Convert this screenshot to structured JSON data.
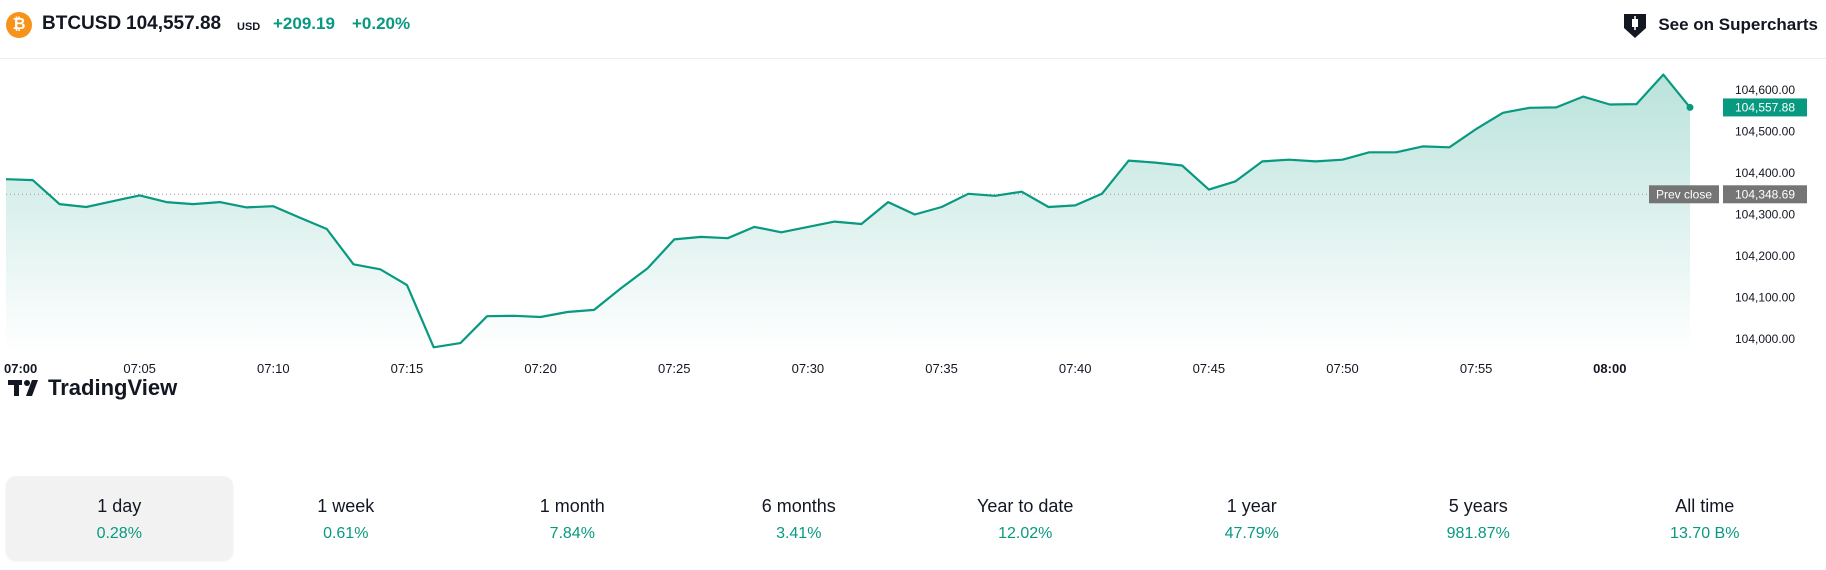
{
  "header": {
    "coin_icon": "bitcoin-icon",
    "coin_glyph": "₿",
    "symbol": "BTCUSD",
    "price": "104,557.88",
    "currency": "USD",
    "change": "+209.19",
    "change_pct": "+0.20%",
    "supercharts_label": "See on Supercharts",
    "supercharts_icon": "supercharts-icon"
  },
  "colors": {
    "line": "#089981",
    "positive": "#089981",
    "prev_close_bg": "#757575",
    "grid_text": "#131722"
  },
  "watermark": "TradingView",
  "chart_data": {
    "type": "area",
    "x": [
      "07:00",
      "07:01",
      "07:02",
      "07:03",
      "07:04",
      "07:05",
      "07:06",
      "07:07",
      "07:08",
      "07:09",
      "07:10",
      "07:11",
      "07:12",
      "07:13",
      "07:14",
      "07:15",
      "07:16",
      "07:17",
      "07:18",
      "07:19",
      "07:20",
      "07:21",
      "07:22",
      "07:23",
      "07:24",
      "07:25",
      "07:26",
      "07:27",
      "07:28",
      "07:29",
      "07:30",
      "07:31",
      "07:32",
      "07:33",
      "07:34",
      "07:35",
      "07:36",
      "07:37",
      "07:38",
      "07:39",
      "07:40",
      "07:41",
      "07:42",
      "07:43",
      "07:44",
      "07:45",
      "07:46",
      "07:47",
      "07:48",
      "07:49",
      "07:50",
      "07:51",
      "07:52",
      "07:53",
      "07:54",
      "07:55",
      "07:56",
      "07:57",
      "07:58",
      "07:59",
      "08:00",
      "08:01",
      "08:02",
      "08:03"
    ],
    "values": [
      104385,
      104383,
      104325,
      104318,
      104332,
      104346,
      104330,
      104325,
      104330,
      104317,
      104320,
      104292,
      104265,
      104180,
      104168,
      104130,
      103980,
      103990,
      104055,
      104056,
      104053,
      104065,
      104070,
      104122,
      104170,
      104240,
      104246,
      104243,
      104270,
      104257,
      104270,
      104283,
      104277,
      104330,
      104300,
      104318,
      104350,
      104345,
      104355,
      104318,
      104322,
      104350,
      104430,
      104425,
      104418,
      104360,
      104380,
      104428,
      104432,
      104428,
      104432,
      104450,
      104450,
      104464,
      104462,
      104506,
      104545,
      104557,
      104558,
      104584,
      104565,
      104566,
      104637,
      104558
    ],
    "prev_close": 104348.69,
    "last_price_label": "104,557.88",
    "prev_close_value_label": "104,348.69",
    "prev_close_label": "Prev close",
    "y_ticks": [
      "104,000.00",
      "104,100.00",
      "104,200.00",
      "104,300.00",
      "104,400.00",
      "104,500.00",
      "104,600.00"
    ],
    "x_ticks": [
      "07:00",
      "07:05",
      "07:10",
      "07:15",
      "07:20",
      "07:25",
      "07:30",
      "07:35",
      "07:40",
      "07:45",
      "07:50",
      "07:55",
      "08:00"
    ],
    "ylim": [
      103990,
      104660
    ],
    "grid": false
  },
  "periods": [
    {
      "label": "1 day",
      "value": "0.28%",
      "active": true
    },
    {
      "label": "1 week",
      "value": "0.61%",
      "active": false
    },
    {
      "label": "1 month",
      "value": "7.84%",
      "active": false
    },
    {
      "label": "6 months",
      "value": "3.41%",
      "active": false
    },
    {
      "label": "Year to date",
      "value": "12.02%",
      "active": false
    },
    {
      "label": "1 year",
      "value": "47.79%",
      "active": false
    },
    {
      "label": "5 years",
      "value": "981.87%",
      "active": false
    },
    {
      "label": "All time",
      "value": "13.70 B%",
      "active": false
    }
  ]
}
